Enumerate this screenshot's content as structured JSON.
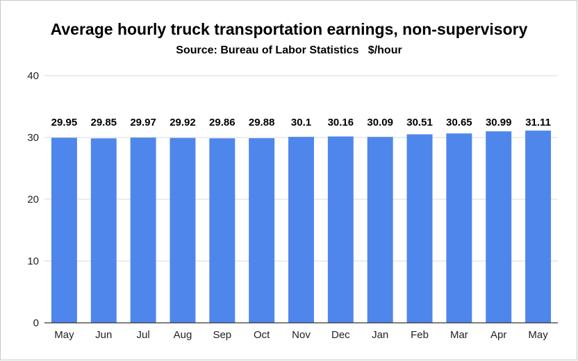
{
  "chart_data": {
    "type": "bar",
    "title": "Average hourly truck transportation earnings, non-supervisory",
    "subtitle": "Source: Bureau of Labor Statistics   $/hour",
    "categories": [
      "May",
      "Jun",
      "Jul",
      "Aug",
      "Sep",
      "Oct",
      "Nov",
      "Dec",
      "Jan",
      "Feb",
      "Mar",
      "Apr",
      "May"
    ],
    "values": [
      29.95,
      29.85,
      29.97,
      29.92,
      29.86,
      29.88,
      30.1,
      30.16,
      30.09,
      30.51,
      30.65,
      30.99,
      31.11
    ],
    "value_labels": [
      "29.95",
      "29.85",
      "29.97",
      "29.92",
      "29.86",
      "29.88",
      "30.1",
      "30.16",
      "30.09",
      "30.51",
      "30.65",
      "30.99",
      "31.11"
    ],
    "yticks": [
      "0",
      "10",
      "20",
      "30",
      "40"
    ],
    "ylim": [
      0,
      40
    ],
    "grid": true,
    "bar_color": "#4f86ec",
    "grid_color": "#d9d9d9",
    "axis_color": "#333333"
  }
}
